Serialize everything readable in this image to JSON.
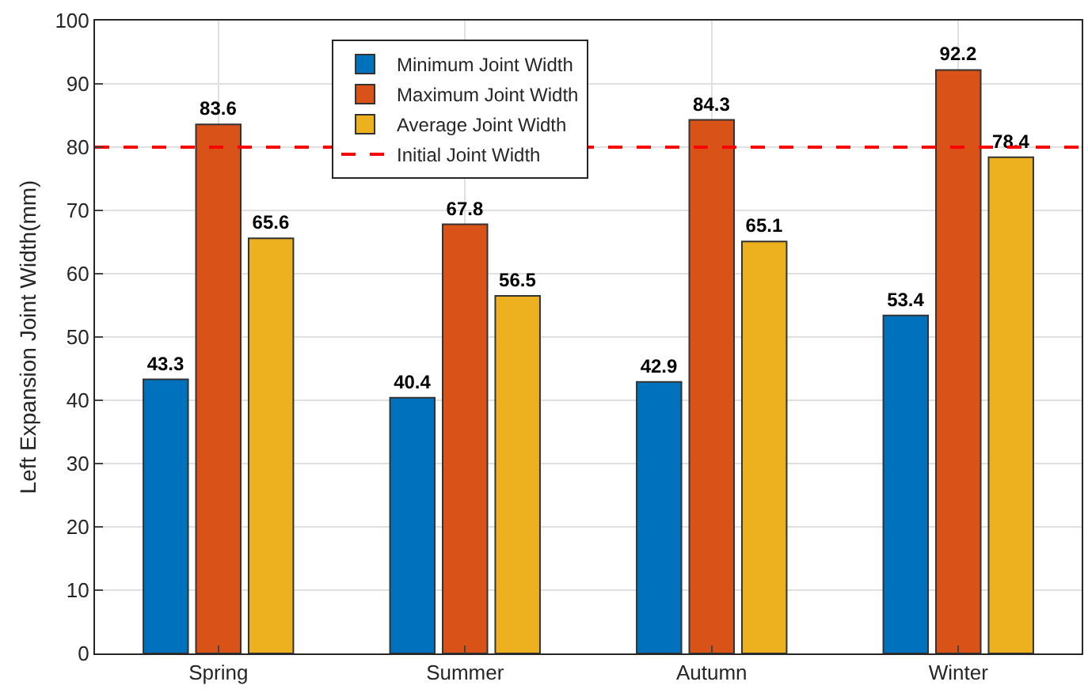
{
  "chart_data": {
    "type": "bar",
    "ylabel": "Left Expansion Joint Width(mm)",
    "categories": [
      "Spring",
      "Summer",
      "Autumn",
      "Winter"
    ],
    "series": [
      {
        "name": "Minimum Joint Width",
        "color": "#0072bd",
        "values": [
          43.3,
          40.4,
          42.9,
          53.4
        ]
      },
      {
        "name": "Maximum Joint Width",
        "color": "#d95319",
        "values": [
          83.6,
          67.8,
          84.3,
          92.2
        ]
      },
      {
        "name": "Average Joint Width",
        "color": "#edb120",
        "values": [
          65.6,
          56.5,
          65.1,
          78.4
        ]
      }
    ],
    "ref_lines": [
      {
        "axis": "y",
        "value": 80,
        "label": "Initial Joint Width",
        "color": "#ff0000",
        "line_style": "dashed"
      }
    ],
    "ylim": [
      0,
      100
    ],
    "yticks": [
      0,
      10,
      20,
      30,
      40,
      50,
      60,
      70,
      80,
      90,
      100
    ],
    "grid": true,
    "legend": "top",
    "data_labels": true
  }
}
